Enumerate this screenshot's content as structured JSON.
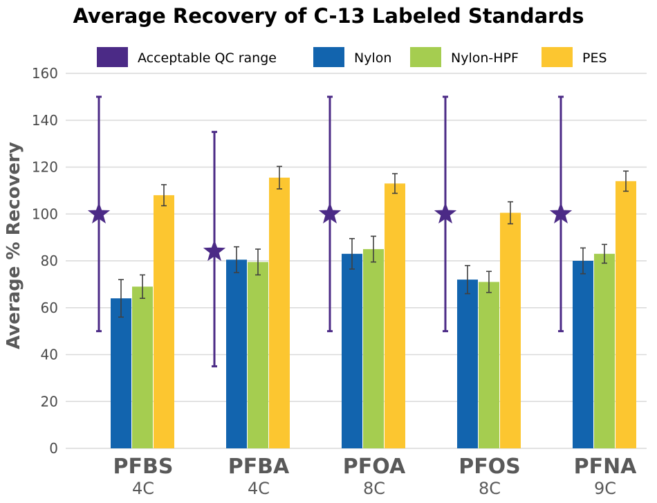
{
  "chart_data": {
    "type": "bar",
    "title": "Average Recovery of C-13 Labeled Standards",
    "ylabel": "Average % Recovery",
    "xlabel": "",
    "ylim": [
      0,
      160
    ],
    "yticks": [
      0,
      20,
      40,
      60,
      80,
      100,
      120,
      140,
      160
    ],
    "grid": true,
    "legend_position": "top",
    "categories": [
      "PFBS",
      "PFBA",
      "PFOA",
      "PFOS",
      "PFNA"
    ],
    "category_sublabels": [
      "4C",
      "4C",
      "8C",
      "8C",
      "9C"
    ],
    "qc_range": {
      "name": "Acceptable QC range",
      "color": "#4b2a86",
      "targets": [
        100,
        84,
        100,
        100,
        100
      ],
      "low": [
        50,
        35,
        50,
        50,
        50
      ],
      "high": [
        150,
        135,
        150,
        150,
        150
      ]
    },
    "series": [
      {
        "name": "Nylon",
        "color": "#1264ae",
        "values": [
          64,
          80.5,
          83,
          72,
          80
        ],
        "err": [
          8,
          5.5,
          6.5,
          6,
          5.5
        ]
      },
      {
        "name": "Nylon-HPF",
        "color": "#a5cd50",
        "values": [
          69,
          79.5,
          85,
          71,
          83
        ],
        "err": [
          5,
          5.5,
          5.5,
          4.5,
          4
        ]
      },
      {
        "name": "PES",
        "color": "#fcc630",
        "values": [
          108,
          115.5,
          113,
          100.5,
          114
        ],
        "err": [
          4.5,
          4.8,
          4.2,
          4.7,
          4.3
        ]
      }
    ]
  }
}
